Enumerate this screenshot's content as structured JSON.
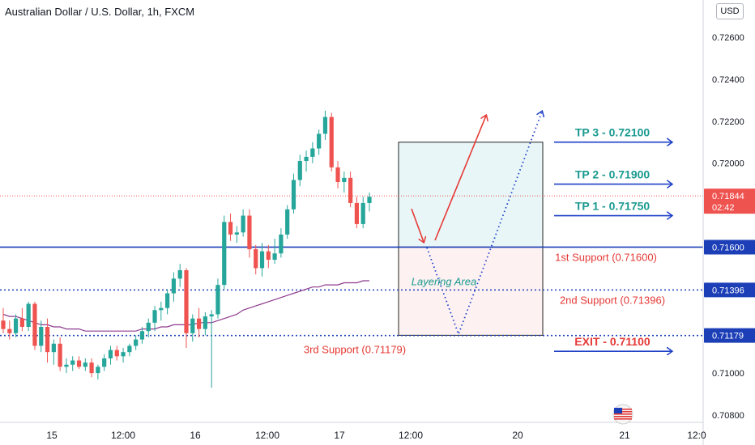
{
  "header": {
    "title": "Australian Dollar / U.S. Dollar, 1h, FXCM",
    "currency_button": "USD"
  },
  "colors": {
    "up": "#26a69a",
    "down": "#ef5350",
    "ma": "#8e3a8e",
    "support_line": "#1c3fb7",
    "tp_text": "#1a9a8f",
    "exit_text": "#e53935",
    "arrow": "#1e40c8",
    "zone_upper": "#e8f6f8",
    "zone_lower": "#fdf1f1",
    "current_price_bg": "#ef5350"
  },
  "chart_data": {
    "type": "candlestick",
    "symbol": "AUDUSD",
    "timeframe": "1h",
    "ylim": [
      0.7075,
      0.7275
    ],
    "y_ticks": [
      "0.72600",
      "0.72400",
      "0.72200",
      "0.72000",
      "0.71800",
      "0.71600",
      "0.71400",
      "0.71200",
      "0.71000",
      "0.70800"
    ],
    "x_ticks": [
      "15",
      "12:00",
      "16",
      "12:00",
      "17",
      "12:00",
      "20",
      "21",
      "12:0"
    ],
    "current_price": {
      "value": "0.71844",
      "countdown": "02:42"
    },
    "price_labels": [
      {
        "value": "0.71600",
        "color": "#1c3fb7"
      },
      {
        "value": "0.71396",
        "color": "#1c3fb7"
      },
      {
        "value": "0.71179",
        "color": "#1c3fb7"
      }
    ],
    "candles": [
      {
        "o": 0.7125,
        "h": 0.7131,
        "l": 0.7119,
        "c": 0.7121
      },
      {
        "o": 0.7121,
        "h": 0.7125,
        "l": 0.7116,
        "c": 0.7119
      },
      {
        "o": 0.7119,
        "h": 0.7128,
        "l": 0.7117,
        "c": 0.7126
      },
      {
        "o": 0.7126,
        "h": 0.7131,
        "l": 0.712,
        "c": 0.7122
      },
      {
        "o": 0.7122,
        "h": 0.7134,
        "l": 0.712,
        "c": 0.7133
      },
      {
        "o": 0.7133,
        "h": 0.7134,
        "l": 0.7111,
        "c": 0.7113
      },
      {
        "o": 0.7113,
        "h": 0.7125,
        "l": 0.711,
        "c": 0.7122
      },
      {
        "o": 0.7122,
        "h": 0.7126,
        "l": 0.7105,
        "c": 0.711
      },
      {
        "o": 0.711,
        "h": 0.7116,
        "l": 0.7104,
        "c": 0.7114
      },
      {
        "o": 0.7114,
        "h": 0.7117,
        "l": 0.7101,
        "c": 0.7103
      },
      {
        "o": 0.7103,
        "h": 0.7107,
        "l": 0.71,
        "c": 0.7104
      },
      {
        "o": 0.7104,
        "h": 0.7108,
        "l": 0.7101,
        "c": 0.7106
      },
      {
        "o": 0.7106,
        "h": 0.7108,
        "l": 0.7102,
        "c": 0.7103
      },
      {
        "o": 0.7103,
        "h": 0.7107,
        "l": 0.7101,
        "c": 0.7105
      },
      {
        "o": 0.7105,
        "h": 0.7107,
        "l": 0.7098,
        "c": 0.71
      },
      {
        "o": 0.71,
        "h": 0.7104,
        "l": 0.7097,
        "c": 0.7103
      },
      {
        "o": 0.7103,
        "h": 0.7109,
        "l": 0.7101,
        "c": 0.7107
      },
      {
        "o": 0.7107,
        "h": 0.7113,
        "l": 0.7104,
        "c": 0.7111
      },
      {
        "o": 0.7111,
        "h": 0.7113,
        "l": 0.7106,
        "c": 0.7108
      },
      {
        "o": 0.7108,
        "h": 0.7112,
        "l": 0.7105,
        "c": 0.711
      },
      {
        "o": 0.711,
        "h": 0.7114,
        "l": 0.7108,
        "c": 0.7113
      },
      {
        "o": 0.7113,
        "h": 0.7118,
        "l": 0.7111,
        "c": 0.7116
      },
      {
        "o": 0.7116,
        "h": 0.7122,
        "l": 0.7114,
        "c": 0.712
      },
      {
        "o": 0.712,
        "h": 0.7126,
        "l": 0.7117,
        "c": 0.7124
      },
      {
        "o": 0.7124,
        "h": 0.7132,
        "l": 0.712,
        "c": 0.713
      },
      {
        "o": 0.713,
        "h": 0.7134,
        "l": 0.7125,
        "c": 0.7131
      },
      {
        "o": 0.7131,
        "h": 0.714,
        "l": 0.7128,
        "c": 0.7138
      },
      {
        "o": 0.7138,
        "h": 0.7148,
        "l": 0.7134,
        "c": 0.7145
      },
      {
        "o": 0.7145,
        "h": 0.7152,
        "l": 0.7141,
        "c": 0.7149
      },
      {
        "o": 0.7149,
        "h": 0.715,
        "l": 0.7112,
        "c": 0.7119
      },
      {
        "o": 0.7119,
        "h": 0.7128,
        "l": 0.7115,
        "c": 0.7126
      },
      {
        "o": 0.7126,
        "h": 0.7131,
        "l": 0.7117,
        "c": 0.7121
      },
      {
        "o": 0.7121,
        "h": 0.7129,
        "l": 0.7118,
        "c": 0.7127
      },
      {
        "o": 0.7127,
        "h": 0.713,
        "l": 0.7093,
        "c": 0.7128
      },
      {
        "o": 0.7128,
        "h": 0.7145,
        "l": 0.7126,
        "c": 0.7142
      },
      {
        "o": 0.7142,
        "h": 0.7175,
        "l": 0.714,
        "c": 0.7172
      },
      {
        "o": 0.7172,
        "h": 0.7176,
        "l": 0.7163,
        "c": 0.7166
      },
      {
        "o": 0.7166,
        "h": 0.717,
        "l": 0.7162,
        "c": 0.7167
      },
      {
        "o": 0.7167,
        "h": 0.7178,
        "l": 0.7165,
        "c": 0.7175
      },
      {
        "o": 0.7175,
        "h": 0.7178,
        "l": 0.7155,
        "c": 0.7159
      },
      {
        "o": 0.7159,
        "h": 0.7161,
        "l": 0.7147,
        "c": 0.715
      },
      {
        "o": 0.715,
        "h": 0.7162,
        "l": 0.7146,
        "c": 0.7158
      },
      {
        "o": 0.7158,
        "h": 0.7161,
        "l": 0.715,
        "c": 0.7154
      },
      {
        "o": 0.7154,
        "h": 0.7164,
        "l": 0.7152,
        "c": 0.7157
      },
      {
        "o": 0.7157,
        "h": 0.7169,
        "l": 0.7155,
        "c": 0.7166
      },
      {
        "o": 0.7166,
        "h": 0.718,
        "l": 0.7164,
        "c": 0.7178
      },
      {
        "o": 0.7178,
        "h": 0.7195,
        "l": 0.7176,
        "c": 0.7192
      },
      {
        "o": 0.7192,
        "h": 0.7204,
        "l": 0.7189,
        "c": 0.7201
      },
      {
        "o": 0.7201,
        "h": 0.7206,
        "l": 0.7196,
        "c": 0.7203
      },
      {
        "o": 0.7203,
        "h": 0.721,
        "l": 0.72,
        "c": 0.7207
      },
      {
        "o": 0.7207,
        "h": 0.7216,
        "l": 0.7204,
        "c": 0.7214
      },
      {
        "o": 0.7214,
        "h": 0.7225,
        "l": 0.7211,
        "c": 0.7222
      },
      {
        "o": 0.7222,
        "h": 0.7224,
        "l": 0.7196,
        "c": 0.7198
      },
      {
        "o": 0.7198,
        "h": 0.7201,
        "l": 0.7188,
        "c": 0.7191
      },
      {
        "o": 0.7191,
        "h": 0.7196,
        "l": 0.7186,
        "c": 0.7193
      },
      {
        "o": 0.7193,
        "h": 0.7196,
        "l": 0.7179,
        "c": 0.7181
      },
      {
        "o": 0.7181,
        "h": 0.7184,
        "l": 0.7169,
        "c": 0.7171
      },
      {
        "o": 0.7171,
        "h": 0.7184,
        "l": 0.7169,
        "c": 0.7181
      },
      {
        "o": 0.7181,
        "h": 0.7186,
        "l": 0.7177,
        "c": 0.7184
      }
    ],
    "moving_average": [
      0.7128,
      0.7127,
      0.7127,
      0.7126,
      0.7125,
      0.7124,
      0.7123,
      0.7123,
      0.7122,
      0.7122,
      0.7121,
      0.7121,
      0.7121,
      0.712,
      0.712,
      0.712,
      0.712,
      0.712,
      0.712,
      0.712,
      0.712,
      0.712,
      0.7121,
      0.7121,
      0.7121,
      0.7122,
      0.7122,
      0.7123,
      0.7123,
      0.7123,
      0.7123,
      0.7124,
      0.7124,
      0.7124,
      0.7125,
      0.7126,
      0.7127,
      0.7128,
      0.713,
      0.7131,
      0.7132,
      0.7133,
      0.7134,
      0.7135,
      0.7136,
      0.7137,
      0.7138,
      0.7139,
      0.714,
      0.7141,
      0.7141,
      0.7142,
      0.7142,
      0.7142,
      0.7143,
      0.7143,
      0.7143,
      0.7144,
      0.7144
    ],
    "levels": {
      "first_support": 0.716,
      "second_support": 0.71396,
      "third_support": 0.71179
    },
    "targets": [
      {
        "label": "TP 3 - 0.72100",
        "value": 0.721
      },
      {
        "label": "TP 2 - 0.71900",
        "value": 0.719
      },
      {
        "label": "TP 1 - 0.71750",
        "value": 0.7175
      },
      {
        "label": "EXIT - 0.71100",
        "value": 0.711
      }
    ],
    "annotations": {
      "first_support": "1st Support (0.71600)",
      "second_support": "2nd Support (0.71396)",
      "third_support": "3rd Support (0.71179)",
      "layering_area": "Layering Area"
    },
    "zone": {
      "top": 0.721,
      "mid": 0.716,
      "bottom": 0.7118
    }
  }
}
